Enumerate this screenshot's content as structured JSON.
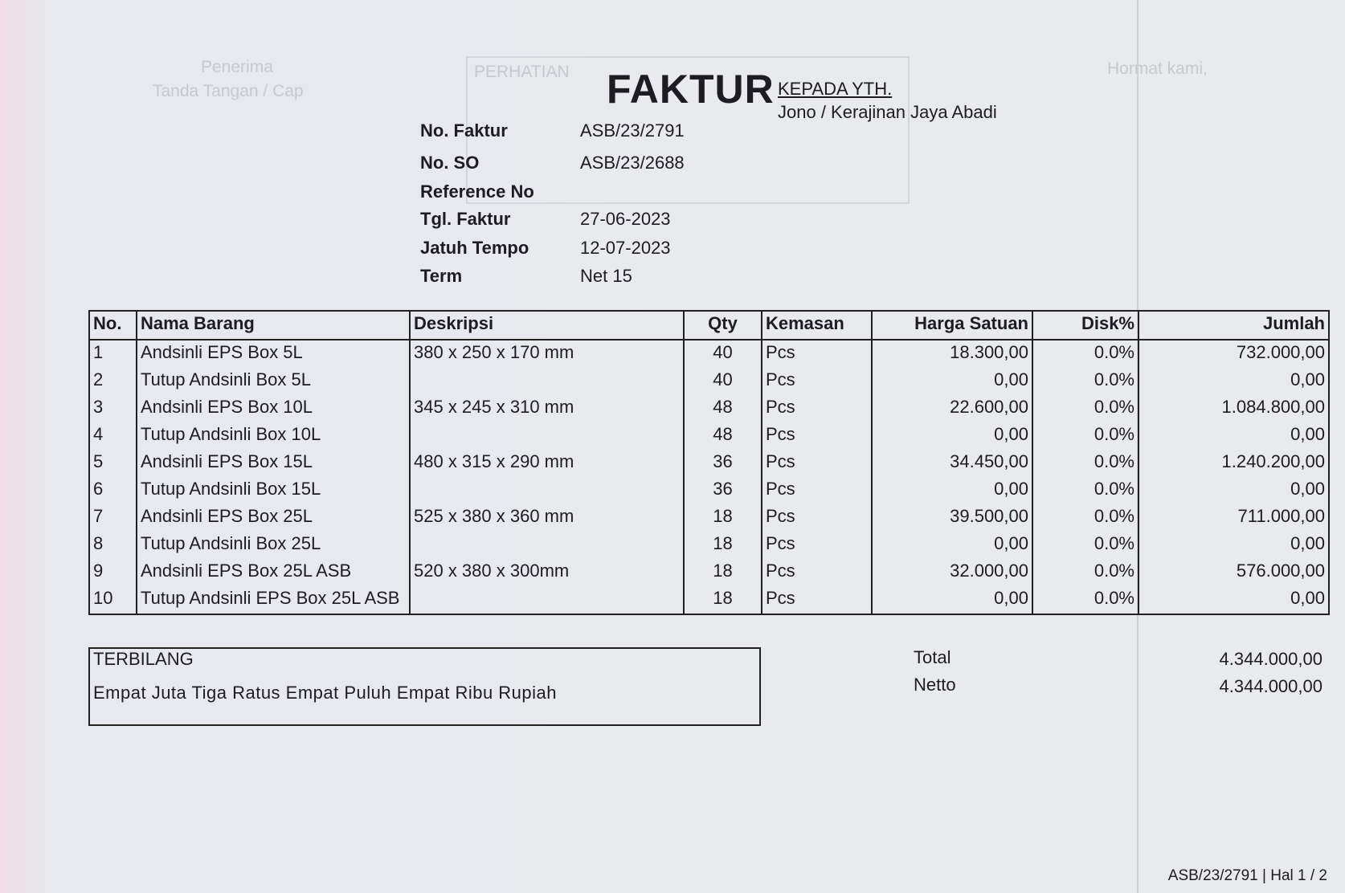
{
  "background": {
    "receiver": "Penerima",
    "signature": "Tanda Tangan / Cap",
    "attention": "PERHATIAN",
    "regards": "Hormat kami,"
  },
  "header": {
    "title": "FAKTUR",
    "to_label": "KEPADA YTH.",
    "to": "Jono / Kerajinan Jaya Abadi"
  },
  "info": [
    {
      "label": "No. Faktur",
      "value": "ASB/23/2791"
    },
    {
      "label": "No. SO",
      "value": "ASB/23/2688"
    },
    {
      "label": "Reference No"
    },
    {
      "label": "Tgl. Faktur",
      "value": "27-06-2023"
    },
    {
      "label": "Jatuh Tempo",
      "value": "12-07-2023"
    },
    {
      "label": "Term",
      "value": "Net 15"
    }
  ],
  "table": {
    "columns": [
      "No.",
      "Nama Barang",
      "Deskripsi",
      "Qty",
      "Kemasan",
      "Harga Satuan",
      "Disk%",
      "Jumlah"
    ],
    "rows": [
      [
        "1",
        "Andsinli EPS Box 5L",
        "380 x 250 x 170 mm",
        "40",
        "Pcs",
        "18.300,00",
        "0.0%",
        "732.000,00"
      ],
      [
        "2",
        "Tutup Andsinli Box 5L",
        null,
        "40",
        "Pcs",
        "0,00",
        "0.0%",
        "0,00"
      ],
      [
        "3",
        "Andsinli EPS Box 10L",
        "345 x 245 x 310 mm",
        "48",
        "Pcs",
        "22.600,00",
        "0.0%",
        "1.084.800,00"
      ],
      [
        "4",
        "Tutup Andsinli Box 10L",
        null,
        "48",
        "Pcs",
        "0,00",
        "0.0%",
        "0,00"
      ],
      [
        "5",
        "Andsinli EPS Box 15L",
        "480 x 315 x 290 mm",
        "36",
        "Pcs",
        "34.450,00",
        "0.0%",
        "1.240.200,00"
      ],
      [
        "6",
        "Tutup Andsinli Box 15L",
        null,
        "36",
        "Pcs",
        "0,00",
        "0.0%",
        "0,00"
      ],
      [
        "7",
        "Andsinli EPS Box 25L",
        "525 x 380 x 360 mm",
        "18",
        "Pcs",
        "39.500,00",
        "0.0%",
        "711.000,00"
      ],
      [
        "8",
        "Tutup Andsinli Box 25L",
        null,
        "18",
        "Pcs",
        "0,00",
        "0.0%",
        "0,00"
      ],
      [
        "9",
        "Andsinli EPS Box 25L ASB",
        "520 x 380 x 300mm",
        "18",
        "Pcs",
        "32.000,00",
        "0.0%",
        "576.000,00"
      ],
      [
        "10",
        "Tutup Andsinli EPS Box 25L ASB",
        null,
        "18",
        "Pcs",
        "0,00",
        "0.0%",
        "0,00"
      ]
    ]
  },
  "summary": {
    "terbilang_label": "TERBILANG",
    "terbilang": "Empat Juta Tiga Ratus Empat Puluh Empat Ribu Rupiah",
    "total_label": "Total",
    "total": "4.344.000,00",
    "netto_label": "Netto",
    "netto": "4.344.000,00"
  },
  "footer": "ASB/23/2791 | Hal 1 / 2"
}
